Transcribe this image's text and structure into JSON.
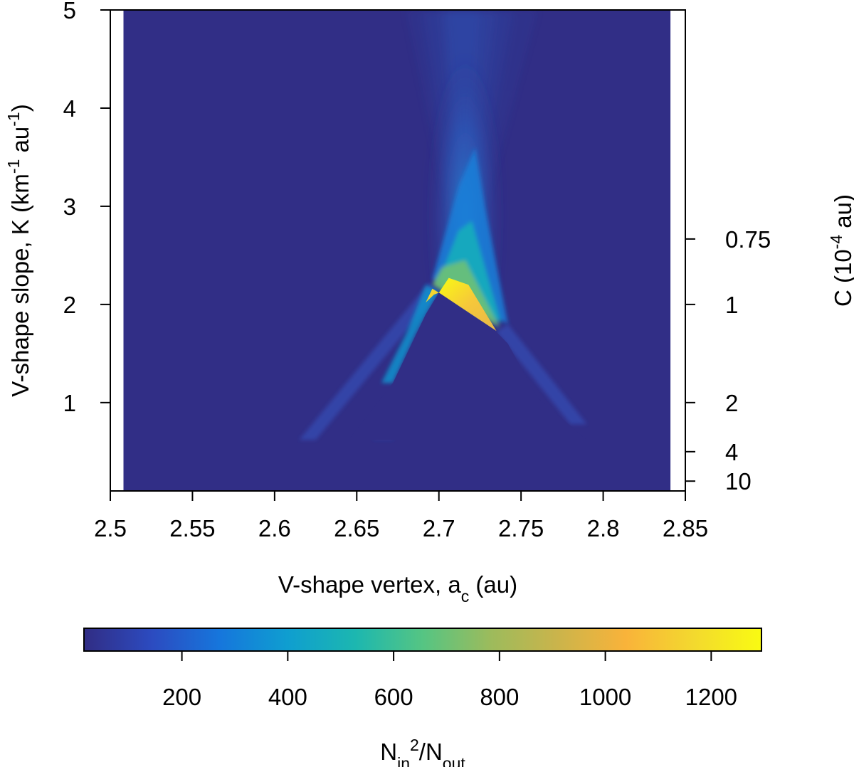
{
  "chart_data": {
    "type": "heatmap",
    "title": "",
    "x": {
      "label": "V-shape vertex, ",
      "label_var": "a",
      "label_sub": "c",
      "label_unit": " (au)",
      "range": [
        2.5,
        2.85
      ],
      "ticks": [
        2.5,
        2.55,
        2.6,
        2.65,
        2.7,
        2.75,
        2.8,
        2.85
      ],
      "tick_labels": [
        "2.5",
        "2.55",
        "2.6",
        "2.65",
        "2.7",
        "2.75",
        "2.8",
        "2.85"
      ]
    },
    "y": {
      "label_main": "V-shape slope, K (km",
      "label_sup1": "-1",
      "label_mid": " au",
      "label_sup2": "-1",
      "label_end": ")",
      "range": [
        0.1,
        5
      ],
      "ticks": [
        1,
        2,
        3,
        4,
        5
      ],
      "tick_labels": [
        "1",
        "2",
        "3",
        "4",
        "5"
      ]
    },
    "y_right": {
      "label_main": "C (10",
      "label_sup": "-4",
      "label_end": " au)",
      "relation": "C = 2 / K (in 10^-4 au)",
      "ticks": [
        0.75,
        1,
        2,
        4,
        10
      ],
      "tick_labels": [
        "0.75",
        "1",
        "2",
        "4",
        "10"
      ]
    },
    "colorbar": {
      "label_base": "N",
      "label_sub1": "in",
      "label_sup": "2",
      "label_mid": "/N",
      "label_sub2": "out",
      "range": [
        15,
        1295
      ],
      "ticks": [
        200,
        400,
        600,
        800,
        1000,
        1200
      ],
      "tick_labels": [
        "200",
        "400",
        "600",
        "800",
        "1000",
        "1200"
      ],
      "colors": [
        "#312d84",
        "#2c4bc0",
        "#1676dc",
        "#0f9ed0",
        "#1cb7b0",
        "#55c583",
        "#9cbb5c",
        "#cbb44b",
        "#f9b33a",
        "#f3d92e",
        "#f9fb12"
      ]
    },
    "data_extent": {
      "x": [
        2.508,
        2.841
      ],
      "y": [
        0.1,
        5
      ]
    },
    "peak": {
      "x": 2.71,
      "y": 2.1,
      "value": 1295
    },
    "background_value": 20,
    "grid": false,
    "legend": "colorbar-bottom"
  }
}
